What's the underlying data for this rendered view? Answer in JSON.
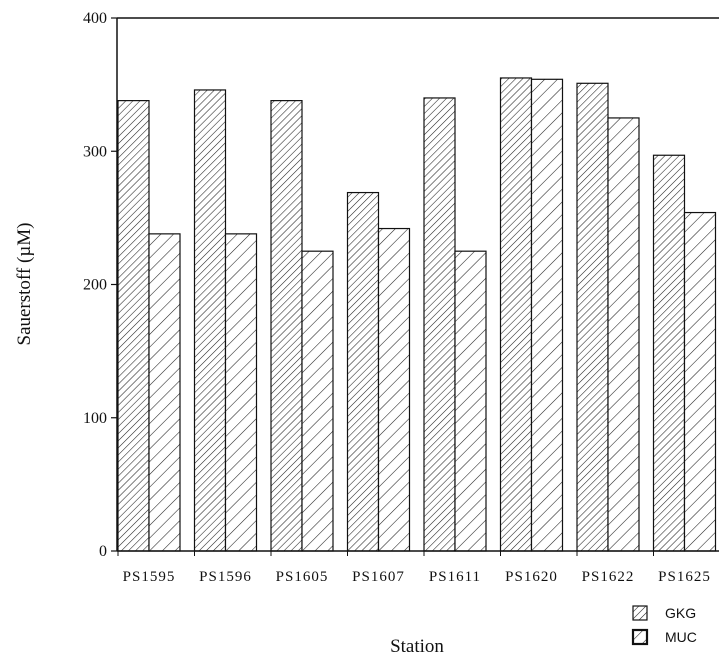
{
  "chart_data": {
    "type": "bar",
    "title": "",
    "xlabel": "Station",
    "ylabel": "Sauerstoff (µM)",
    "ylim": [
      0,
      400
    ],
    "yticks": [
      "0",
      "100",
      "200",
      "300",
      "400"
    ],
    "categories": [
      "PS1595",
      "PS1596",
      "PS1605",
      "PS1607",
      "PS1611",
      "PS1620",
      "PS1622",
      "PS1625"
    ],
    "series": [
      {
        "name": "GKG",
        "values": [
          338,
          346,
          338,
          269,
          340,
          355,
          351,
          297
        ],
        "hatch": "dense-diagonal"
      },
      {
        "name": "MUC",
        "values": [
          238,
          238,
          225,
          242,
          225,
          354,
          325,
          254
        ],
        "hatch": "sparse-diagonal"
      }
    ],
    "grid": false,
    "legend_position": "bottom-right",
    "colors": {
      "stroke": "#111111",
      "fill": "#ffffff"
    }
  }
}
